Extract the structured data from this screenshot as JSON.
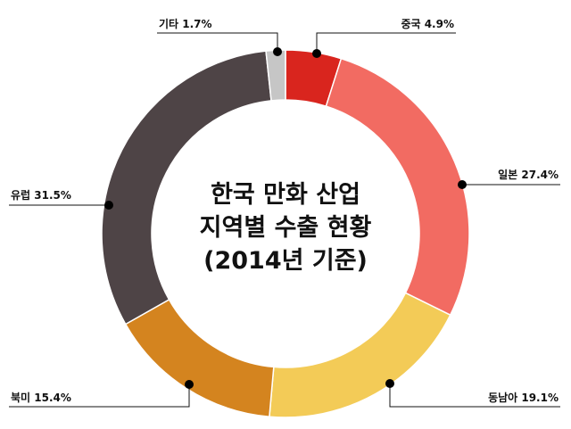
{
  "chart_data": {
    "type": "pie",
    "title_lines": [
      "한국 만화 산업",
      "지역별 수출 현황",
      "(2014년 기준)"
    ],
    "slices": [
      {
        "name": "중국",
        "value": 4.9,
        "label": "중국 4.9%",
        "color": "#d9251e"
      },
      {
        "name": "일본",
        "value": 27.4,
        "label": "일본 27.4%",
        "color": "#f26b62"
      },
      {
        "name": "동남아",
        "value": 19.1,
        "label": "동남아 19.1%",
        "color": "#f3cb57"
      },
      {
        "name": "북미",
        "value": 15.4,
        "label": "북미 15.4%",
        "color": "#d4841f"
      },
      {
        "name": "유럽",
        "value": 31.5,
        "label": "유럽 31.5%",
        "color": "#4e4446"
      },
      {
        "name": "기타",
        "value": 1.7,
        "label": "기타 1.7%",
        "color": "#c6c6c6"
      }
    ]
  }
}
